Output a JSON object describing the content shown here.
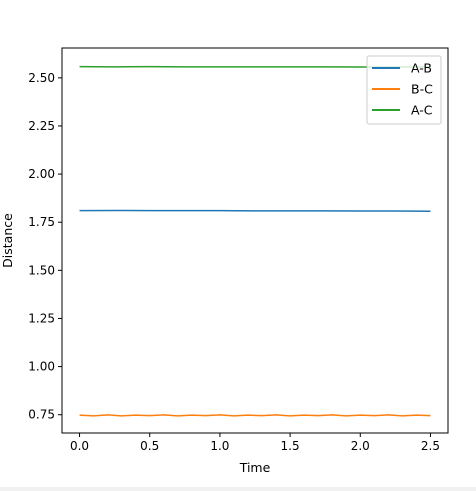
{
  "chart_data": {
    "type": "line",
    "title": "",
    "xlabel": "Time",
    "ylabel": "Distance",
    "xlim": [
      -0.125,
      2.625
    ],
    "ylim": [
      0.655,
      2.655
    ],
    "xticks": [
      "0.0",
      "0.5",
      "1.0",
      "1.5",
      "2.0",
      "2.5"
    ],
    "yticks": [
      "0.75",
      "1.00",
      "1.25",
      "1.50",
      "1.75",
      "2.00",
      "2.25",
      "2.50"
    ],
    "grid": false,
    "legend_position": "upper right",
    "series": [
      {
        "name": "A-B",
        "color": "#1f77b4",
        "x": [
          0.0,
          0.25,
          0.5,
          0.75,
          1.0,
          1.25,
          1.5,
          1.75,
          2.0,
          2.25,
          2.5
        ],
        "y": [
          1.81,
          1.811,
          1.81,
          1.81,
          1.81,
          1.809,
          1.809,
          1.809,
          1.808,
          1.808,
          1.807
        ]
      },
      {
        "name": "B-C",
        "color": "#ff7f0e",
        "x": [
          0.0,
          0.1,
          0.2,
          0.3,
          0.4,
          0.5,
          0.6,
          0.7,
          0.8,
          0.9,
          1.0,
          1.1,
          1.2,
          1.3,
          1.4,
          1.5,
          1.6,
          1.7,
          1.8,
          1.9,
          2.0,
          2.1,
          2.2,
          2.3,
          2.4,
          2.5
        ],
        "y": [
          0.748,
          0.744,
          0.749,
          0.744,
          0.748,
          0.745,
          0.749,
          0.744,
          0.748,
          0.745,
          0.749,
          0.744,
          0.748,
          0.745,
          0.749,
          0.744,
          0.748,
          0.745,
          0.749,
          0.744,
          0.748,
          0.745,
          0.749,
          0.744,
          0.748,
          0.745
        ]
      },
      {
        "name": "A-C",
        "color": "#2ca02c",
        "x": [
          0.0,
          0.25,
          0.5,
          0.75,
          1.0,
          1.25,
          1.5,
          1.75,
          2.0,
          2.25,
          2.5
        ],
        "y": [
          2.558,
          2.557,
          2.558,
          2.557,
          2.557,
          2.557,
          2.557,
          2.557,
          2.556,
          2.556,
          2.556
        ]
      }
    ]
  }
}
